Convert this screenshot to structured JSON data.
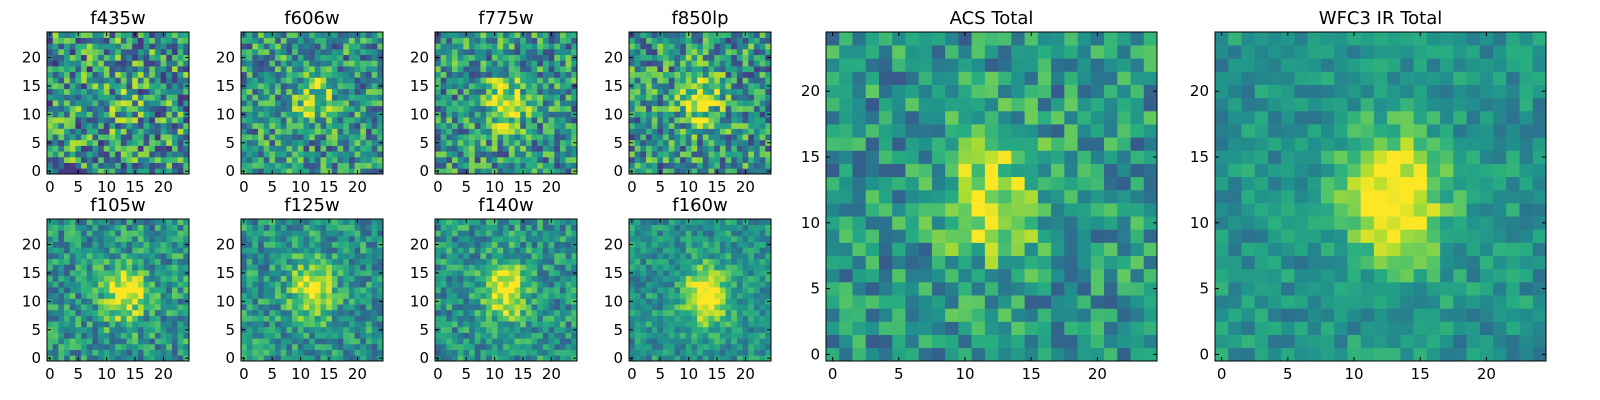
{
  "chart_data": [
    {
      "type": "heatmap",
      "title": "f435w",
      "grid_size": 25,
      "xticks": [
        0,
        5,
        10,
        15,
        20
      ],
      "yticks": [
        0,
        5,
        10,
        15,
        20
      ],
      "xlim": [
        -0.5,
        24.5
      ],
      "ylim": [
        -0.5,
        24.5
      ],
      "colormap": "viridis",
      "source_peak": [
        12,
        12
      ],
      "peak_strength": 0.1,
      "noise_level": 0.48
    },
    {
      "type": "heatmap",
      "title": "f606w",
      "grid_size": 25,
      "xticks": [
        0,
        5,
        10,
        15,
        20
      ],
      "yticks": [
        0,
        5,
        10,
        15,
        20
      ],
      "xlim": [
        -0.5,
        24.5
      ],
      "ylim": [
        -0.5,
        24.5
      ],
      "colormap": "viridis",
      "source_peak": [
        12,
        13
      ],
      "peak_strength": 0.3,
      "noise_level": 0.4
    },
    {
      "type": "heatmap",
      "title": "f775w",
      "grid_size": 25,
      "xticks": [
        0,
        5,
        10,
        15,
        20
      ],
      "yticks": [
        0,
        5,
        10,
        15,
        20
      ],
      "xlim": [
        -0.5,
        24.5
      ],
      "ylim": [
        -0.5,
        24.5
      ],
      "colormap": "viridis",
      "source_peak": [
        12,
        12
      ],
      "peak_strength": 0.42,
      "noise_level": 0.4
    },
    {
      "type": "heatmap",
      "title": "f850lp",
      "grid_size": 25,
      "xticks": [
        0,
        5,
        10,
        15,
        20
      ],
      "yticks": [
        0,
        5,
        10,
        15,
        20
      ],
      "xlim": [
        -0.5,
        24.5
      ],
      "ylim": [
        -0.5,
        24.5
      ],
      "colormap": "viridis",
      "source_peak": [
        12,
        13
      ],
      "peak_strength": 0.42,
      "noise_level": 0.42
    },
    {
      "type": "heatmap",
      "title": "f105w",
      "grid_size": 25,
      "xticks": [
        0,
        5,
        10,
        15,
        20
      ],
      "yticks": [
        0,
        5,
        10,
        15,
        20
      ],
      "xlim": [
        -0.5,
        24.5
      ],
      "ylim": [
        -0.5,
        24.5
      ],
      "colormap": "viridis",
      "source_peak": [
        13,
        11
      ],
      "peak_strength": 0.52,
      "noise_level": 0.3
    },
    {
      "type": "heatmap",
      "title": "f125w",
      "grid_size": 25,
      "xticks": [
        0,
        5,
        10,
        15,
        20
      ],
      "yticks": [
        0,
        5,
        10,
        15,
        20
      ],
      "xlim": [
        -0.5,
        24.5
      ],
      "ylim": [
        -0.5,
        24.5
      ],
      "colormap": "viridis",
      "source_peak": [
        12,
        12
      ],
      "peak_strength": 0.55,
      "noise_level": 0.28
    },
    {
      "type": "heatmap",
      "title": "f140w",
      "grid_size": 25,
      "xticks": [
        0,
        5,
        10,
        15,
        20
      ],
      "yticks": [
        0,
        5,
        10,
        15,
        20
      ],
      "xlim": [
        -0.5,
        24.5
      ],
      "ylim": [
        -0.5,
        24.5
      ],
      "colormap": "viridis",
      "source_peak": [
        12,
        12
      ],
      "peak_strength": 0.55,
      "noise_level": 0.28
    },
    {
      "type": "heatmap",
      "title": "f160w",
      "grid_size": 25,
      "xticks": [
        0,
        5,
        10,
        15,
        20
      ],
      "yticks": [
        0,
        5,
        10,
        15,
        20
      ],
      "xlim": [
        -0.5,
        24.5
      ],
      "ylim": [
        -0.5,
        24.5
      ],
      "colormap": "viridis",
      "source_peak": [
        13,
        11
      ],
      "peak_strength": 0.62,
      "noise_level": 0.22
    },
    {
      "type": "heatmap",
      "title": "ACS Total",
      "grid_size": 25,
      "xticks": [
        0,
        5,
        10,
        15,
        20
      ],
      "yticks": [
        0,
        5,
        10,
        15,
        20
      ],
      "xlim": [
        -0.5,
        24.5
      ],
      "ylim": [
        -0.5,
        24.5
      ],
      "colormap": "viridis",
      "source_peak": [
        12,
        12
      ],
      "peak_strength": 0.45,
      "noise_level": 0.3
    },
    {
      "type": "heatmap",
      "title": "WFC3 IR Total",
      "grid_size": 25,
      "xticks": [
        0,
        5,
        10,
        15,
        20
      ],
      "yticks": [
        0,
        5,
        10,
        15,
        20
      ],
      "xlim": [
        -0.5,
        24.5
      ],
      "ylim": [
        -0.5,
        24.5
      ],
      "colormap": "viridis",
      "source_peak": [
        13,
        12
      ],
      "peak_strength": 0.6,
      "noise_level": 0.18
    }
  ]
}
